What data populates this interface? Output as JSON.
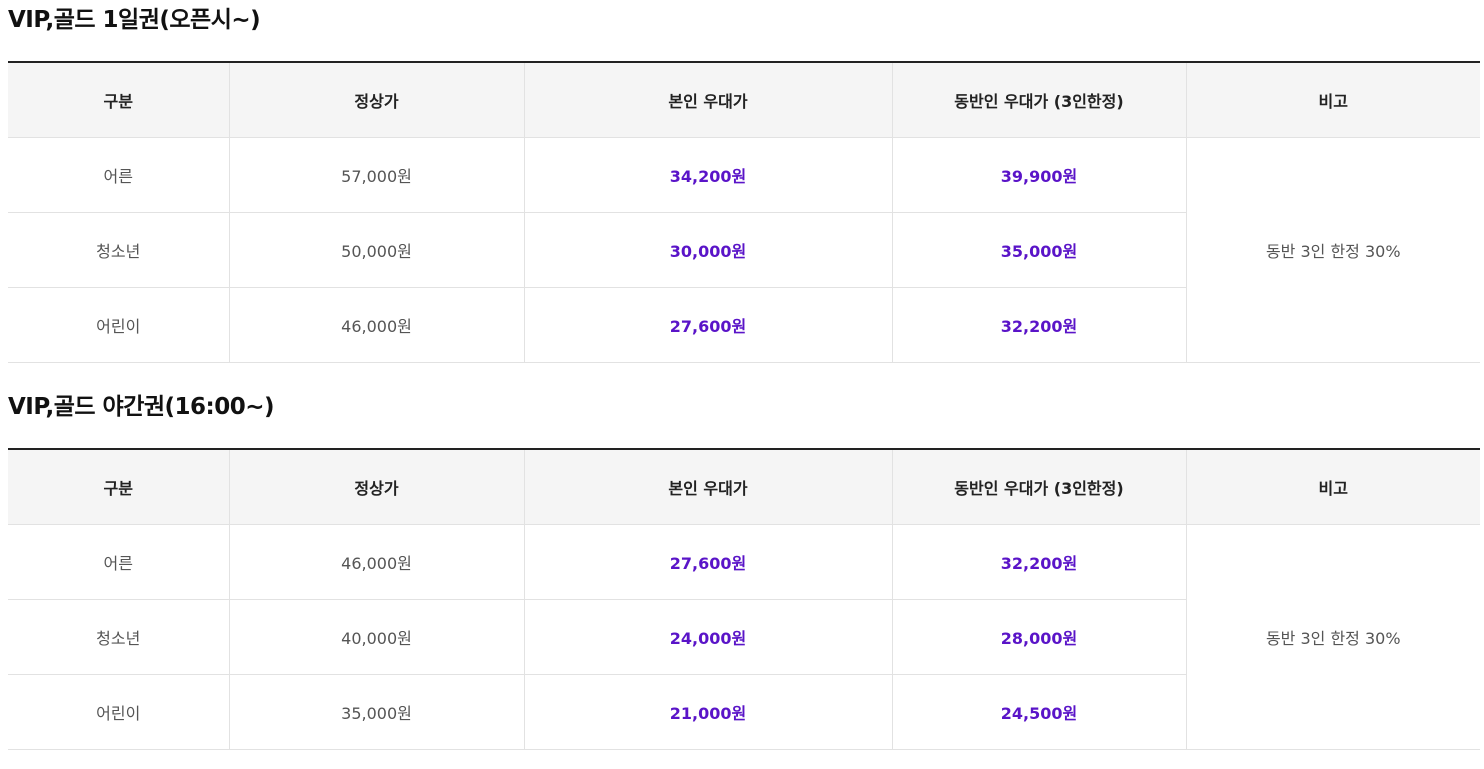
{
  "colors": {
    "accent": "#5a14c8",
    "header_bg": "#f5f5f5",
    "border": "#e2e2e2",
    "text_muted": "#555555"
  },
  "headers": [
    "구분",
    "정상가",
    "본인 우대가",
    "동반인 우대가 (3인한정)",
    "비고"
  ],
  "sections": [
    {
      "title": "VIP,골드 1일권(오픈시~)",
      "rows": [
        {
          "category": "어른",
          "regular": "57,000원",
          "self": "34,200원",
          "companion": "39,900원"
        },
        {
          "category": "청소년",
          "regular": "50,000원",
          "self": "30,000원",
          "companion": "35,000원"
        },
        {
          "category": "어린이",
          "regular": "46,000원",
          "self": "27,600원",
          "companion": "32,200원"
        }
      ],
      "note": "동반 3인 한정 30%"
    },
    {
      "title": "VIP,골드 야간권(16:00~)",
      "rows": [
        {
          "category": "어른",
          "regular": "46,000원",
          "self": "27,600원",
          "companion": "32,200원"
        },
        {
          "category": "청소년",
          "regular": "40,000원",
          "self": "24,000원",
          "companion": "28,000원"
        },
        {
          "category": "어린이",
          "regular": "35,000원",
          "self": "21,000원",
          "companion": "24,500원"
        }
      ],
      "note": "동반 3인 한정 30%"
    }
  ]
}
